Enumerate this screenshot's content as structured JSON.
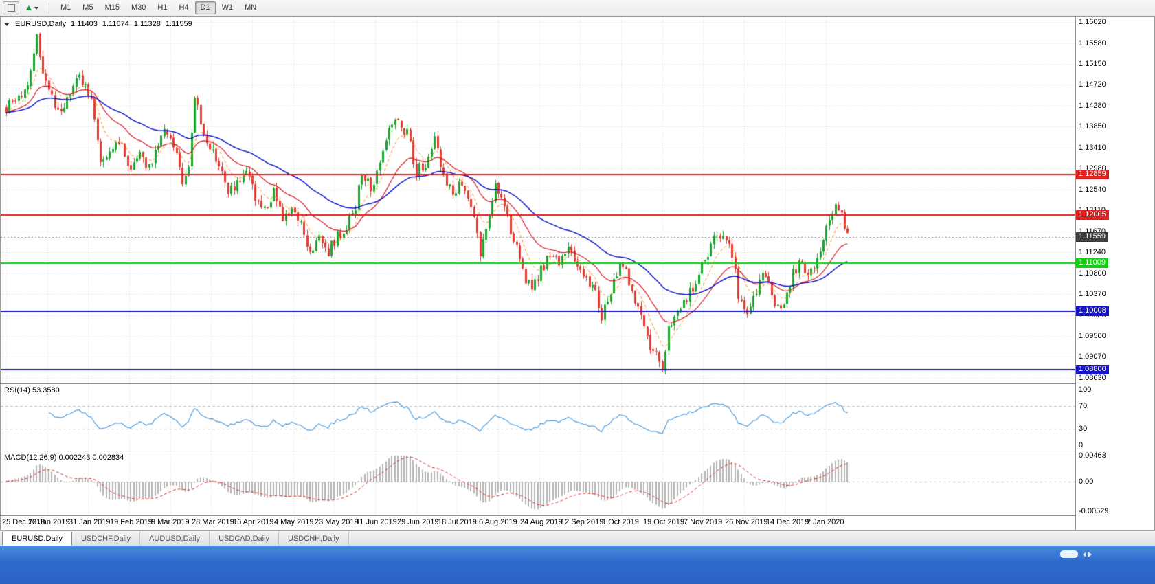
{
  "toolbar": {
    "icons": [
      {
        "name": "chart-window-icon"
      },
      {
        "name": "cycle-symbols-icon",
        "dropdown": true
      }
    ],
    "timeframes": [
      {
        "label": "M1",
        "active": false
      },
      {
        "label": "M5",
        "active": false
      },
      {
        "label": "M15",
        "active": false
      },
      {
        "label": "M30",
        "active": false
      },
      {
        "label": "H1",
        "active": false
      },
      {
        "label": "H4",
        "active": false
      },
      {
        "label": "D1",
        "active": true
      },
      {
        "label": "W1",
        "active": false
      },
      {
        "label": "MN",
        "active": false
      }
    ]
  },
  "chart_header": {
    "symbol": "EURUSD,Daily",
    "open": "1.11403",
    "high": "1.11674",
    "low": "1.11328",
    "close": "1.11559"
  },
  "price_scale": {
    "ticks": [
      "1.16020",
      "1.15580",
      "1.15150",
      "1.14720",
      "1.14280",
      "1.13850",
      "1.13410",
      "1.12980",
      "1.12540",
      "1.12110",
      "1.11670",
      "1.11240",
      "1.10800",
      "1.10370",
      "1.09930",
      "1.09500",
      "1.09070",
      "1.08630"
    ]
  },
  "hlines": [
    {
      "price": 1.12859,
      "label": "1.12859",
      "color": "#e22020",
      "width": 2
    },
    {
      "price": 1.12005,
      "label": "1.12005",
      "color": "#e22020",
      "width": 2
    },
    {
      "price": 1.11009,
      "label": "1.11009",
      "color": "#14cc14",
      "width": 2
    },
    {
      "price": 1.10008,
      "label": "1.10008",
      "color": "#1616c8",
      "width": 2
    },
    {
      "price": 1.088,
      "label": "1.08800",
      "color": "#1616c8",
      "width": 2
    }
  ],
  "current_price": {
    "value": 1.11559,
    "label": "1.11559",
    "badge_bg": "#3c3c3c"
  },
  "rsi_panel": {
    "label": "RSI(14) 53.3580",
    "period": 14,
    "scale": [
      "100",
      "70",
      "30",
      "0"
    ],
    "levels": [
      70,
      30
    ],
    "line_color": "#4f9ada"
  },
  "macd_panel": {
    "label": "MACD(12,26,9) 0.002243 0.002834",
    "fast": 12,
    "slow": 26,
    "signal": 9,
    "scale_top": "0.00463",
    "scale_mid": "0.00",
    "scale_bottom": "-0.00529",
    "max": 0.00463,
    "min": -0.00529,
    "histogram_color": "#b4b4b4",
    "signal_color": "#e02020"
  },
  "date_axis": [
    "25 Dec 2018",
    "12 Jan 2019",
    "31 Jan 2019",
    "19 Feb 2019",
    "9 Mar 2019",
    "28 Mar 2019",
    "16 Apr 2019",
    "4 May 2019",
    "23 May 2019",
    "11 Jun 2019",
    "29 Jun 2019",
    "18 Jul 2019",
    "6 Aug 2019",
    "24 Aug 2019",
    "12 Sep 2019",
    "1 Oct 2019",
    "19 Oct 2019",
    "7 Nov 2019",
    "26 Nov 2019",
    "14 Dec 2019",
    "2 Jan 2020"
  ],
  "tabs": [
    {
      "label": "EURUSD,Daily",
      "active": true
    },
    {
      "label": "USDCHF,Daily",
      "active": false
    },
    {
      "label": "AUDUSD,Daily",
      "active": false
    },
    {
      "label": "USDCAD,Daily",
      "active": false
    },
    {
      "label": "USDCNH,Daily",
      "active": false
    }
  ],
  "chart_data": {
    "type": "candlestick",
    "symbol": "EURUSD",
    "timeframe": "Daily",
    "title": "EURUSD,Daily 1.11403 1.11674 1.11328 1.11559",
    "y_range": [
      1.08516,
      1.1612
    ],
    "candle_count": 278,
    "bull_color": "#18a62c",
    "bear_color": "#e03c32",
    "grid_color": "#dadada",
    "noise": 0.0013,
    "wick": 0.0012,
    "seed": 987654321,
    "close_path_anchors": [
      [
        0,
        1.1425
      ],
      [
        6,
        1.1455
      ],
      [
        10,
        1.1565
      ],
      [
        13,
        1.1475
      ],
      [
        17,
        1.1415
      ],
      [
        20,
        1.1435
      ],
      [
        24,
        1.149
      ],
      [
        28,
        1.1445
      ],
      [
        31,
        1.13
      ],
      [
        34,
        1.133
      ],
      [
        38,
        1.1355
      ],
      [
        41,
        1.129
      ],
      [
        44,
        1.132
      ],
      [
        47,
        1.13
      ],
      [
        50,
        1.1345
      ],
      [
        53,
        1.138
      ],
      [
        56,
        1.133
      ],
      [
        58,
        1.1255
      ],
      [
        60,
        1.13
      ],
      [
        62,
        1.1445
      ],
      [
        64,
        1.139
      ],
      [
        67,
        1.134
      ],
      [
        70,
        1.131
      ],
      [
        73,
        1.125
      ],
      [
        76,
        1.127
      ],
      [
        79,
        1.129
      ],
      [
        82,
        1.124
      ],
      [
        85,
        1.121
      ],
      [
        88,
        1.1255
      ],
      [
        91,
        1.1185
      ],
      [
        94,
        1.1215
      ],
      [
        97,
        1.1185
      ],
      [
        100,
        1.1125
      ],
      [
        103,
        1.116
      ],
      [
        106,
        1.1125
      ],
      [
        109,
        1.1155
      ],
      [
        112,
        1.118
      ],
      [
        115,
        1.1215
      ],
      [
        117,
        1.129
      ],
      [
        120,
        1.1255
      ],
      [
        123,
        1.132
      ],
      [
        126,
        1.1375
      ],
      [
        129,
        1.14
      ],
      [
        132,
        1.137
      ],
      [
        135,
        1.129
      ],
      [
        138,
        1.131
      ],
      [
        141,
        1.137
      ],
      [
        144,
        1.128
      ],
      [
        147,
        1.1245
      ],
      [
        150,
        1.1275
      ],
      [
        153,
        1.122
      ],
      [
        156,
        1.112
      ],
      [
        159,
        1.12
      ],
      [
        161,
        1.1275
      ],
      [
        164,
        1.1215
      ],
      [
        167,
        1.115
      ],
      [
        170,
        1.1085
      ],
      [
        173,
        1.104
      ],
      [
        176,
        1.1085
      ],
      [
        179,
        1.1125
      ],
      [
        182,
        1.1095
      ],
      [
        185,
        1.1135
      ],
      [
        188,
        1.1095
      ],
      [
        191,
        1.107
      ],
      [
        194,
        1.1035
      ],
      [
        196,
        1.0985
      ],
      [
        199,
        1.1045
      ],
      [
        202,
        1.1105
      ],
      [
        205,
        1.1065
      ],
      [
        208,
        1.101
      ],
      [
        211,
        1.0945
      ],
      [
        214,
        1.0905
      ],
      [
        216,
        1.0885
      ],
      [
        218,
        1.096
      ],
      [
        221,
        1.0995
      ],
      [
        224,
        1.1025
      ],
      [
        227,
        1.1065
      ],
      [
        230,
        1.1105
      ],
      [
        233,
        1.1155
      ],
      [
        236,
        1.116
      ],
      [
        239,
        1.1125
      ],
      [
        241,
        1.1035
      ],
      [
        243,
        1.0995
      ],
      [
        246,
        1.1035
      ],
      [
        249,
        1.1075
      ],
      [
        252,
        1.1035
      ],
      [
        255,
        1.0995
      ],
      [
        258,
        1.1065
      ],
      [
        261,
        1.1105
      ],
      [
        264,
        1.1075
      ],
      [
        267,
        1.1115
      ],
      [
        270,
        1.1175
      ],
      [
        273,
        1.1235
      ],
      [
        275,
        1.121
      ],
      [
        277,
        1.1156
      ]
    ],
    "moving_averages": [
      {
        "type": "ema",
        "period": 8,
        "color": "#ff8c1a",
        "dash": [
          4,
          3
        ],
        "width": 1
      },
      {
        "type": "ema",
        "period": 21,
        "color": "#dc1420",
        "dash": [],
        "width": 1.2
      },
      {
        "type": "ema",
        "period": 50,
        "color": "#0a14c8",
        "dash": [],
        "width": 1.5
      }
    ],
    "horizontal_levels": [
      1.12859,
      1.12005,
      1.11009,
      1.10008,
      1.088
    ]
  }
}
